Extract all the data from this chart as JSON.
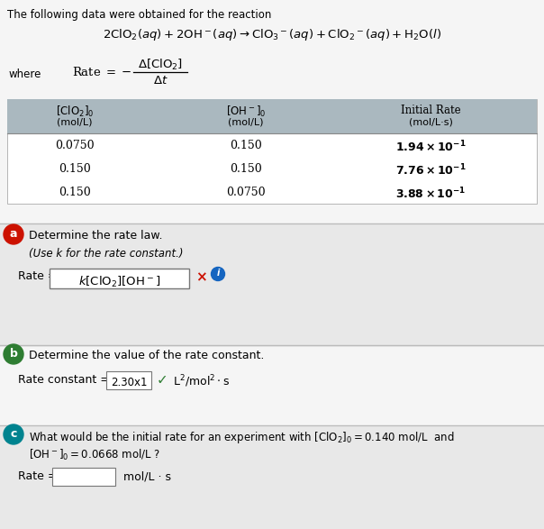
{
  "bg_color": "#ebebeb",
  "white_bg": "#ffffff",
  "title_text": "The following data were obtained for the reaction",
  "section_a_circle_color": "#cc1100",
  "section_b_circle_color": "#2e7d32",
  "section_c_circle_color": "#00838f",
  "part_a_text": "Determine the rate law.",
  "part_a_subtext": "(Use k for the rate constant.)",
  "part_b_text": "Determine the value of the rate constant.",
  "part_b_answer": "2.30x1",
  "table_header_bg": "#aab8bf",
  "section_divider_color": "#bbbbbb",
  "top_section_bg": "#f5f5f5",
  "sec_a_bg": "#e8e8e8",
  "sec_b_bg": "#f5f5f5",
  "sec_c_bg": "#e8e8e8"
}
